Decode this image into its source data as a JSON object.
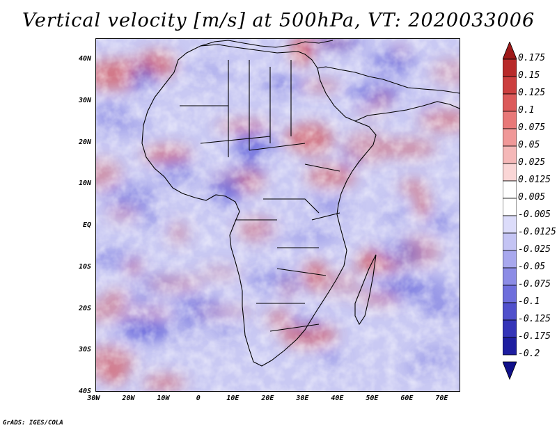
{
  "title": "Vertical velocity [m/s] at 500hPa, VT: 2020033006",
  "footer": "GrADS: IGES/COLA",
  "lat_ticks": [
    "40N",
    "30N",
    "20N",
    "10N",
    "EQ",
    "10S",
    "20S",
    "30S",
    "40S"
  ],
  "lon_ticks": [
    "30W",
    "20W",
    "10W",
    "0",
    "10E",
    "20E",
    "30E",
    "40E",
    "50E",
    "60E",
    "70E"
  ],
  "colorbar": {
    "labels": [
      "0.175",
      "0.15",
      "0.125",
      "0.1",
      "0.075",
      "0.05",
      "0.025",
      "0.0125",
      "0.005",
      "-0.005",
      "-0.0125",
      "-0.025",
      "-0.05",
      "-0.075",
      "-0.1",
      "-0.125",
      "-0.175",
      "-0.2"
    ],
    "colors": [
      "#9e1a1a",
      "#b82a2a",
      "#cc3f3f",
      "#dc5a5a",
      "#e87878",
      "#f09898",
      "#f5b8b8",
      "#fad6d6",
      "#ffffff",
      "#ffffff",
      "#dcdcfa",
      "#c4c4f4",
      "#a8a8ee",
      "#8c8ce6",
      "#6e6edc",
      "#5050cc",
      "#3434b8",
      "#1e1ea0",
      "#10108a"
    ]
  },
  "colors": {
    "positive": "#d84a4a",
    "negative": "#5a5ad8",
    "background": "#ffffff"
  }
}
